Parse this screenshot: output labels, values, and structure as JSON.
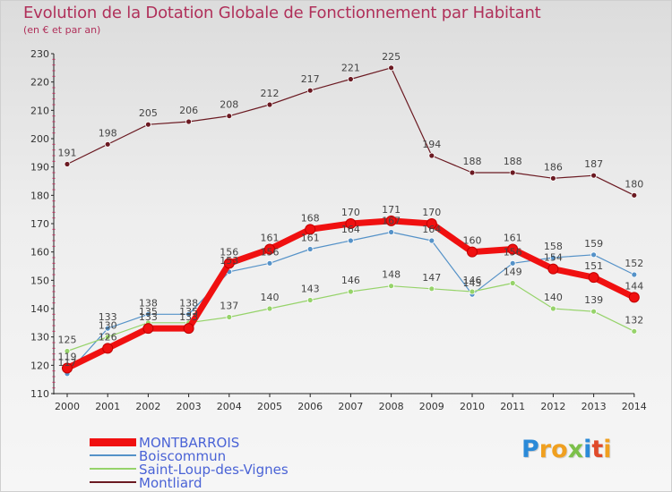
{
  "header": {
    "title": "Evolution de la Dotation Globale de Fonctionnement par Habitant",
    "subtitle": "(en € et par an)"
  },
  "logo": {
    "letters": [
      "P",
      "r",
      "o",
      "x",
      "i",
      "t",
      "i"
    ],
    "colors": [
      "#2b8ad8",
      "#f0a020",
      "#f0a020",
      "#7cc04a",
      "#2b8ad8",
      "#e04a2a",
      "#f0a020"
    ]
  },
  "chart_data": {
    "type": "line",
    "title": "Evolution de la Dotation Globale de Fonctionnement par Habitant",
    "subtitle": "(en € et par an)",
    "xlabel": "",
    "ylabel": "",
    "categories": [
      "2000",
      "2001",
      "2002",
      "2003",
      "2004",
      "2005",
      "2006",
      "2007",
      "2008",
      "2009",
      "2010",
      "2011",
      "2012",
      "2013",
      "2014"
    ],
    "ylim": [
      110,
      230
    ],
    "yticks": [
      110,
      120,
      130,
      140,
      150,
      160,
      170,
      180,
      190,
      200,
      210,
      220,
      230
    ],
    "grid": false,
    "legend_position": "bottom-left",
    "series": [
      {
        "name": "Montliard",
        "color": "#6b1a22",
        "values": [
          191,
          198,
          205,
          206,
          208,
          212,
          217,
          221,
          225,
          194,
          188,
          188,
          186,
          187,
          180
        ]
      },
      {
        "name": "Boiscommun",
        "color": "#5592c8",
        "values": [
          117,
          133,
          138,
          138,
          153,
          156,
          161,
          164,
          167,
          164,
          145,
          156,
          158,
          159,
          152
        ]
      },
      {
        "name": "Saint-Loup-des-Vignes",
        "color": "#96d36a",
        "values": [
          125,
          130,
          135,
          135,
          137,
          140,
          143,
          146,
          148,
          147,
          146,
          149,
          140,
          139,
          132
        ]
      },
      {
        "name": "MONTBARROIS",
        "color": "#f01010",
        "values": [
          119,
          126,
          133,
          133,
          156,
          161,
          168,
          170,
          171,
          170,
          160,
          161,
          154,
          151,
          144
        ]
      }
    ]
  }
}
